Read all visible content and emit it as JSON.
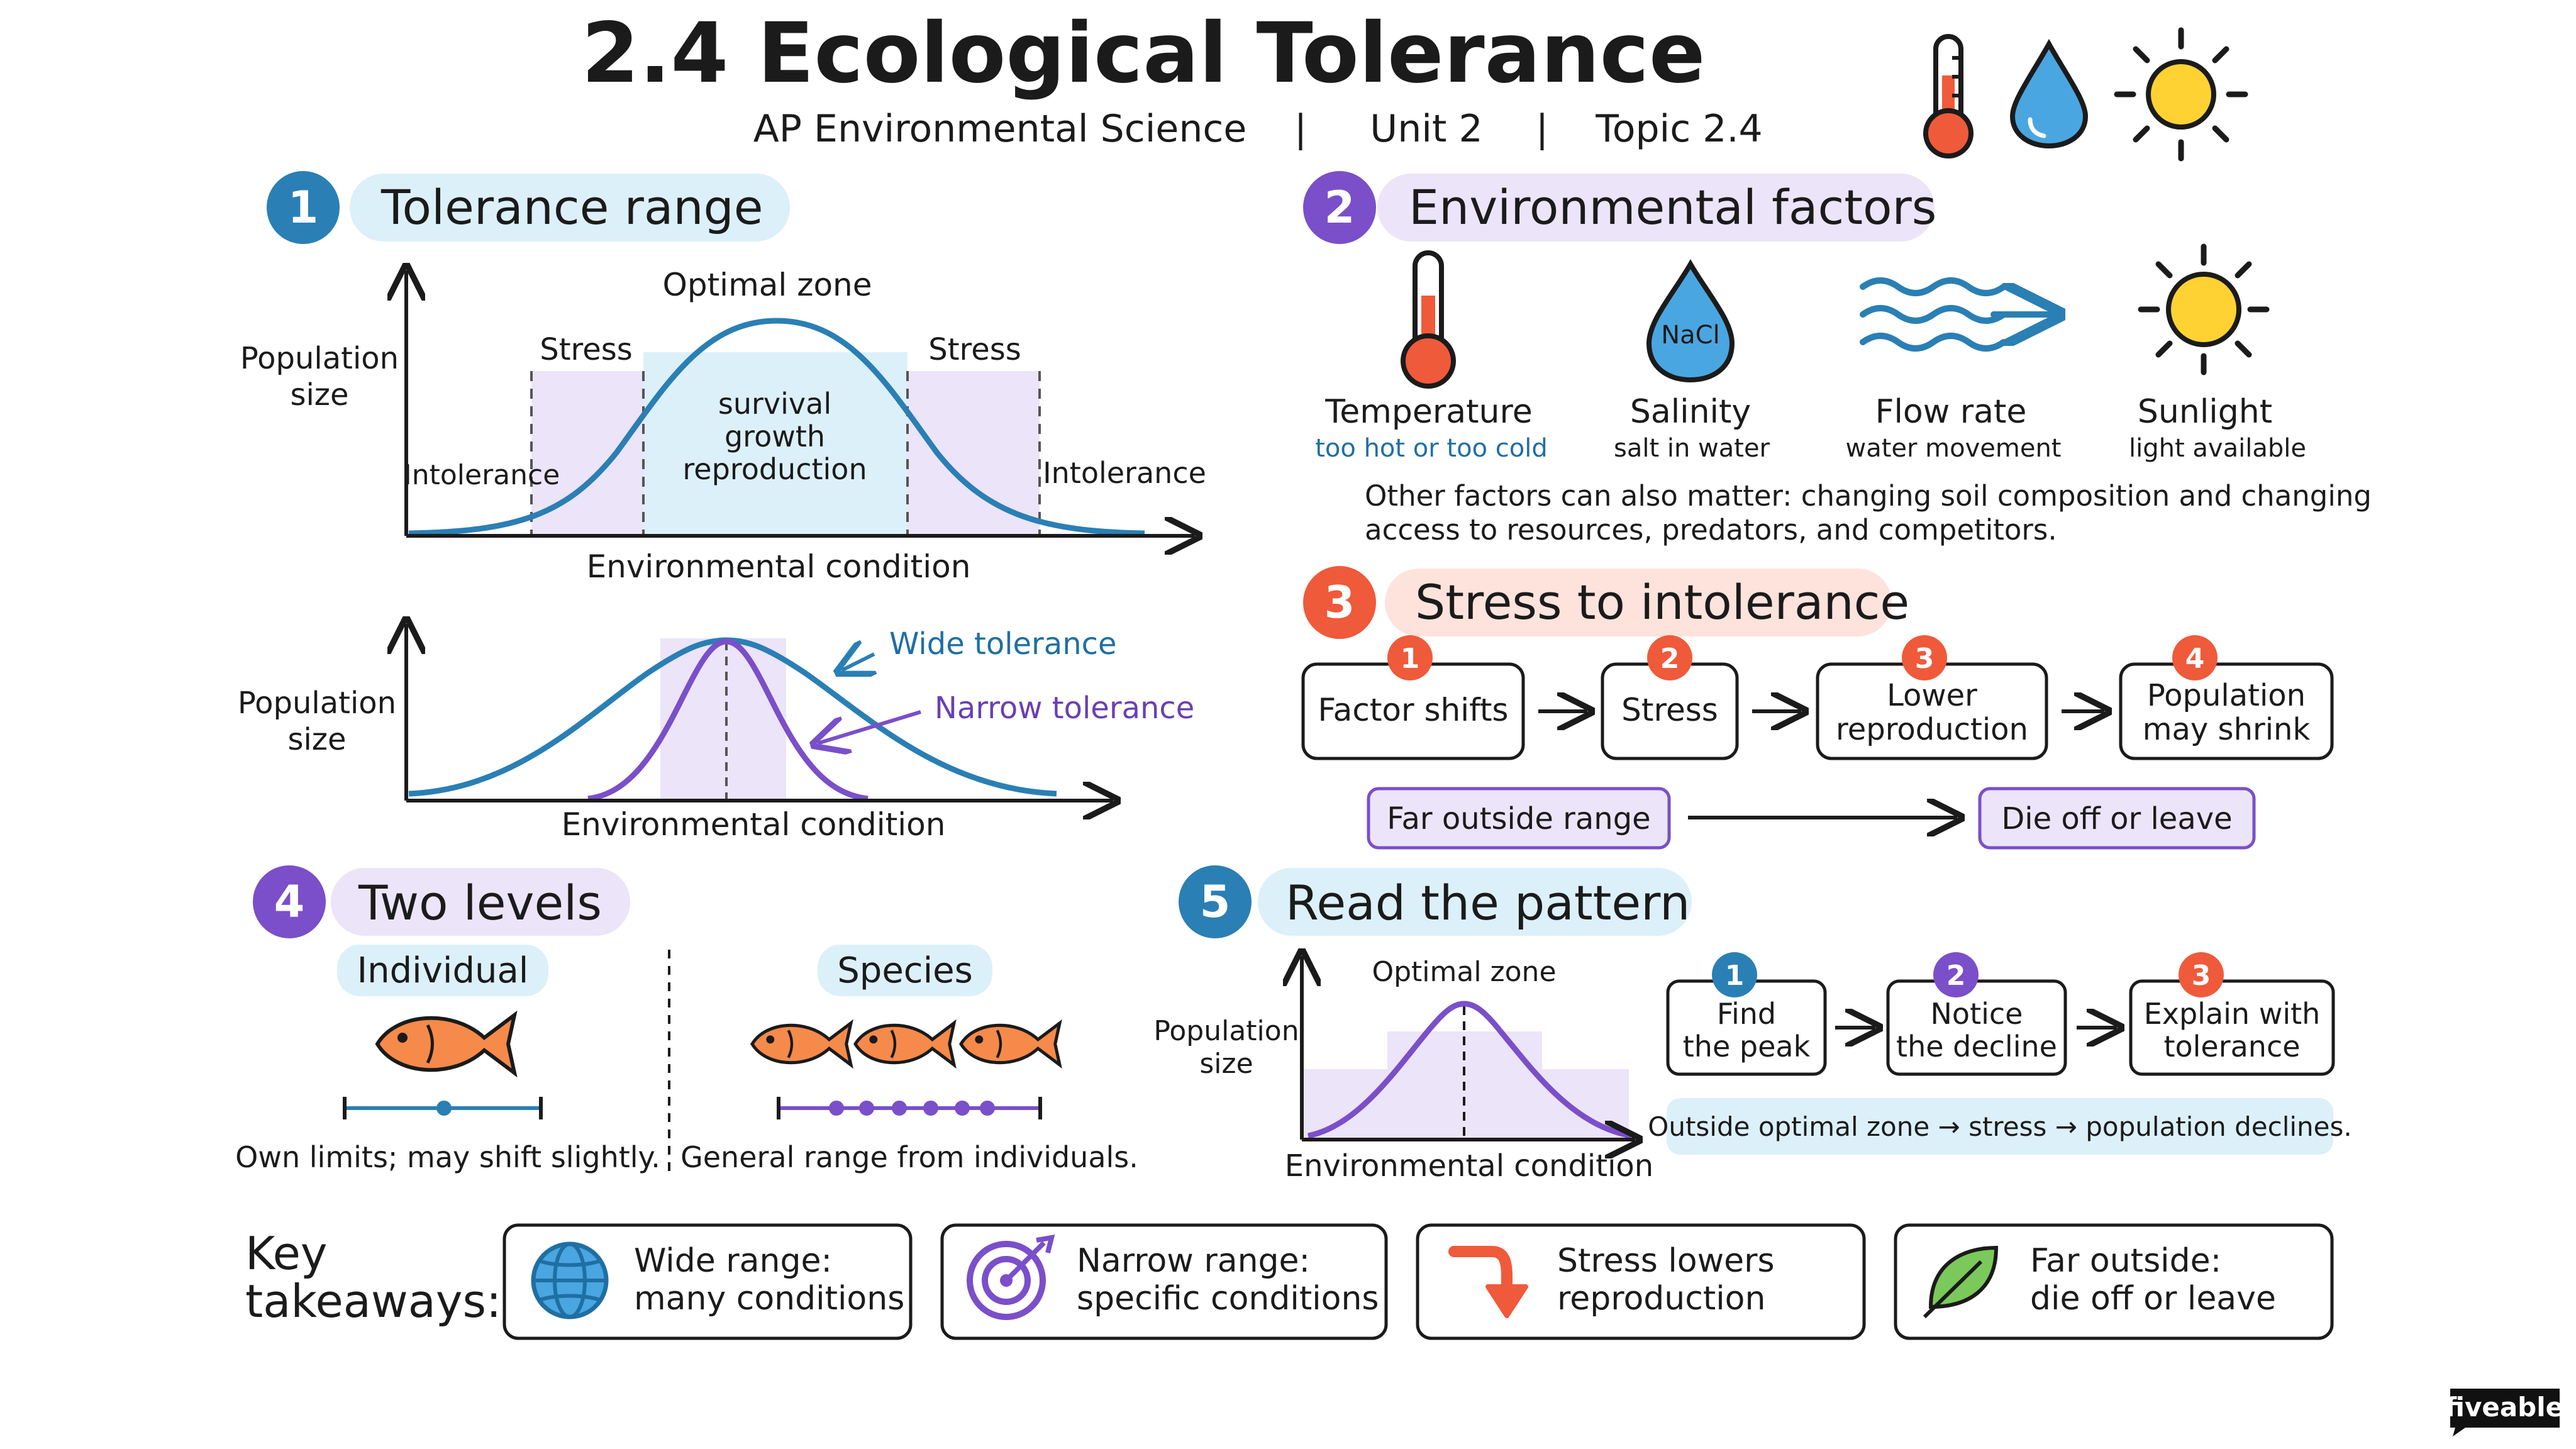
{
  "title": "2.4 Ecological Tolerance",
  "subtitle": {
    "course": "AP Environmental Science",
    "sep1": "|",
    "unit": "Unit 2",
    "sep2": "|",
    "topic": "Topic 2.4"
  },
  "header_icons": [
    "thermometer-icon",
    "water-drop-icon",
    "sun-icon"
  ],
  "colors": {
    "blue": "#2a7fb4",
    "purple": "#7a4fc9",
    "orange_red": "#ef5a3a",
    "light_blue": "#dcf0fa",
    "light_purple": "#ece4f8",
    "light_red": "#fde3dc"
  },
  "section1": {
    "number": "1",
    "heading": "Tolerance range",
    "chart1": {
      "ylabel_line1": "Population",
      "ylabel_line2": "size",
      "xlabel": "Environmental condition",
      "optimal_label": "Optimal zone",
      "stress_left": "Stress",
      "stress_right": "Stress",
      "intolerance_left": "Intolerance",
      "intolerance_right": "Intolerance",
      "center_line1": "survival",
      "center_line2": "growth",
      "center_line3": "reproduction"
    },
    "chart2": {
      "ylabel_line1": "Population",
      "ylabel_line2": "size",
      "xlabel": "Environmental condition",
      "wide_label": "Wide tolerance",
      "narrow_label": "Narrow tolerance"
    }
  },
  "section2": {
    "number": "2",
    "heading": "Environmental factors",
    "factors": [
      {
        "icon": "thermometer-icon",
        "name": "Temperature",
        "desc": "too hot or too cold"
      },
      {
        "icon": "salinity-drop-icon",
        "icon_text": "NaCl",
        "name": "Salinity",
        "desc": "salt in water"
      },
      {
        "icon": "water-flow-icon",
        "name": "Flow rate",
        "desc": "water movement"
      },
      {
        "icon": "sun-icon",
        "name": "Sunlight",
        "desc": "light available"
      }
    ],
    "note_line1": "Other factors can also matter: changing soil composition and changing",
    "note_line2": "access to resources, predators, and competitors."
  },
  "section3": {
    "number": "3",
    "heading": "Stress to intolerance",
    "steps": [
      {
        "num": "1",
        "line1": "Factor shifts",
        "line2": ""
      },
      {
        "num": "2",
        "line1": "Stress",
        "line2": ""
      },
      {
        "num": "3",
        "line1": "Lower",
        "line2": "reproduction"
      },
      {
        "num": "4",
        "line1": "Population",
        "line2": "may shrink"
      }
    ],
    "far_outside": "Far outside range",
    "die_off": "Die off or leave"
  },
  "section4": {
    "number": "4",
    "heading": "Two levels",
    "individual_label": "Individual",
    "species_label": "Species",
    "individual_caption": "Own limits; may shift slightly.",
    "species_caption": "General range from individuals."
  },
  "section5": {
    "number": "5",
    "heading": "Read the pattern",
    "chart": {
      "ylabel_line1": "Population",
      "ylabel_line2": "size",
      "xlabel": "Environmental condition",
      "optimal_label": "Optimal zone"
    },
    "steps": [
      {
        "num": "1",
        "line1": "Find",
        "line2": "the peak"
      },
      {
        "num": "2",
        "line1": "Notice",
        "line2": "the decline"
      },
      {
        "num": "3",
        "line1": "Explain with",
        "line2": "tolerance"
      }
    ],
    "summary": "Outside optimal zone → stress → population declines."
  },
  "takeaways": {
    "label_line1": "Key",
    "label_line2": "takeaways:",
    "items": [
      {
        "icon": "globe-icon",
        "line1": "Wide range:",
        "line2": "many conditions"
      },
      {
        "icon": "target-icon",
        "line1": "Narrow range:",
        "line2": "specific conditions"
      },
      {
        "icon": "down-arrow-icon",
        "line1": "Stress lowers",
        "line2": "reproduction"
      },
      {
        "icon": "leaf-icon",
        "line1": "Far outside:",
        "line2": "die off or leave"
      }
    ]
  },
  "brand": "fiveable"
}
